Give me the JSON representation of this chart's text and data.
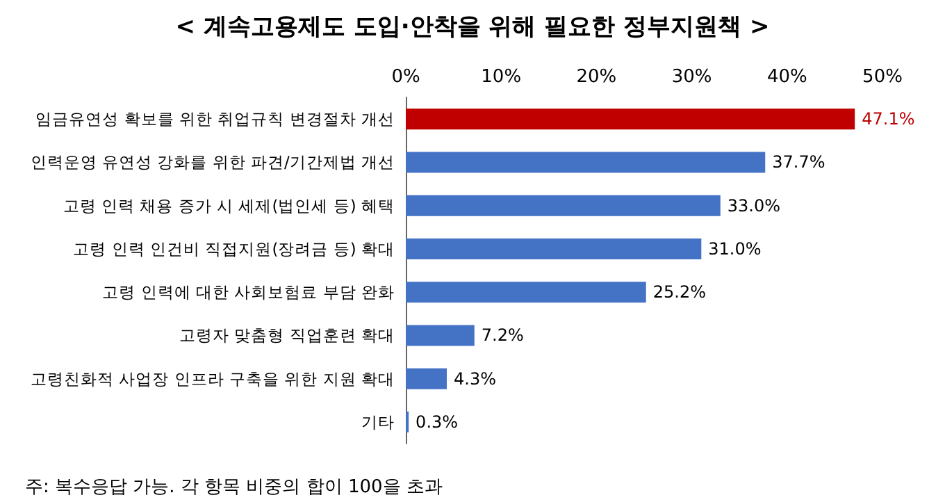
{
  "chart_data": {
    "type": "bar",
    "orientation": "horizontal",
    "title": "< 계속고용제도 도입·안착을 위해 필요한 정부지원책 >",
    "categories": [
      "임금유연성 확보를 위한 취업규칙 변경절차 개선",
      "인력운영 유연성 강화를 위한 파견/기간제법 개선",
      "고령 인력 채용 증가 시 세제(법인세 등) 혜택",
      "고령 인력 인건비 직접지원(장려금 등) 확대",
      "고령 인력에 대한 사회보험료 부담 완화",
      "고령자 맞춤형 직업훈련 확대",
      "고령친화적 사업장 인프라 구축을 위한 지원 확대",
      "기타"
    ],
    "values": [
      47.1,
      37.7,
      33.0,
      31.0,
      25.2,
      7.2,
      4.3,
      0.3
    ],
    "colors": [
      "#c00000",
      "#4472c4",
      "#4472c4",
      "#4472c4",
      "#4472c4",
      "#4472c4",
      "#4472c4",
      "#4472c4"
    ],
    "value_labels": [
      "47.1%",
      "37.7%",
      "33.0%",
      "31.0%",
      "25.2%",
      "7.2%",
      "4.3%",
      "0.3%"
    ],
    "xlim": [
      0,
      50
    ],
    "xticks": [
      {
        "value": 0,
        "label": "0%"
      },
      {
        "value": 10,
        "label": "10%"
      },
      {
        "value": 20,
        "label": "20%"
      },
      {
        "value": 30,
        "label": "30%"
      },
      {
        "value": 40,
        "label": "40%"
      },
      {
        "value": 50,
        "label": "50%"
      }
    ],
    "grid": false,
    "annotations": [
      "주: 복수응답 가능. 각 항목 비중의 합이 100을 초과"
    ]
  }
}
